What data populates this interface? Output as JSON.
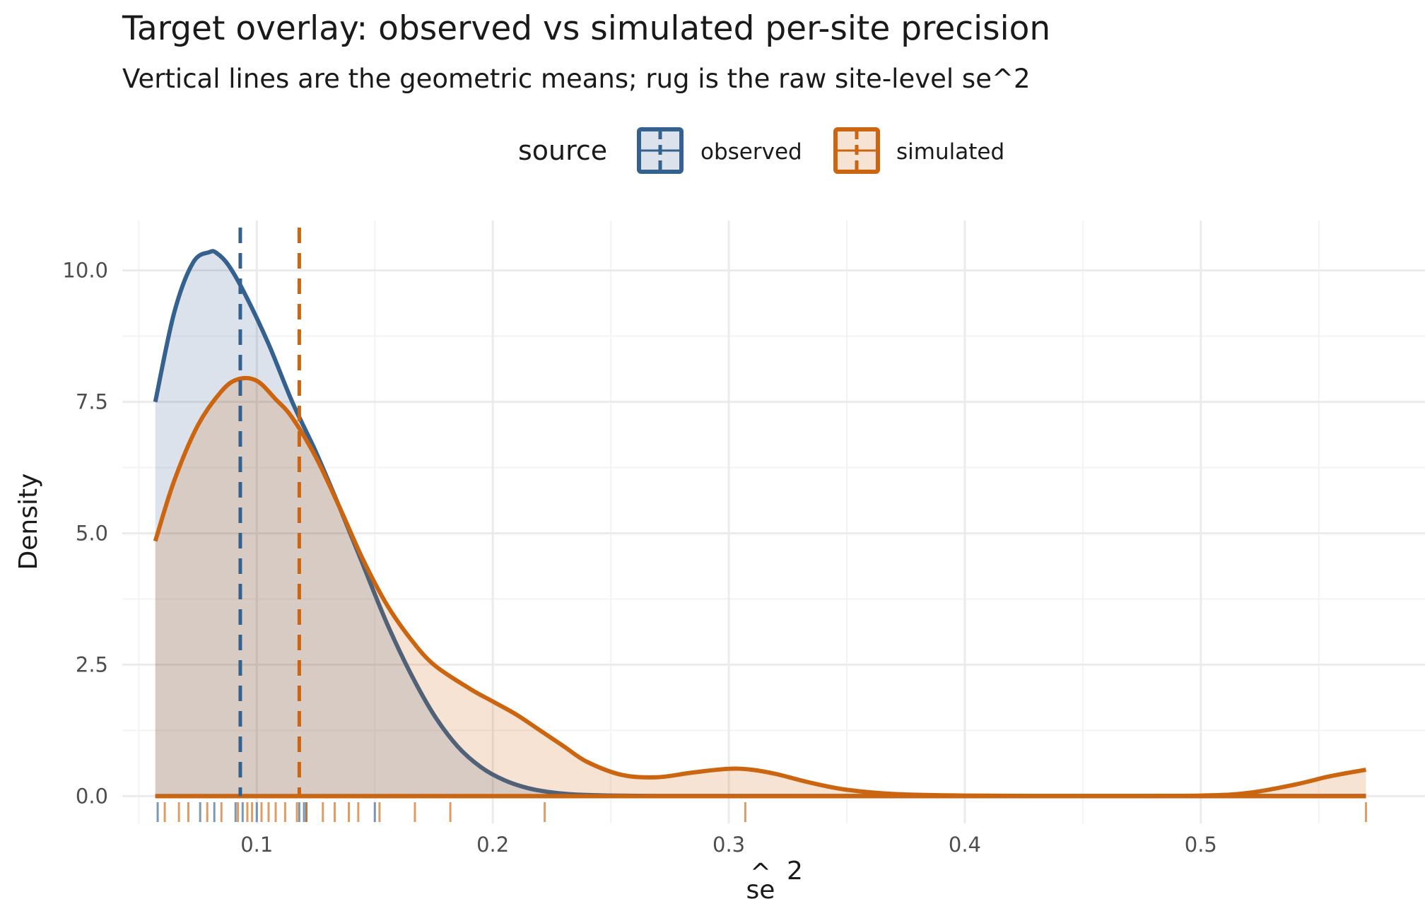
{
  "colors": {
    "observed": "#35618f",
    "simulated": "#cc650f",
    "grid_major": "#ebebeb",
    "grid_minor": "#f3f3f3"
  },
  "chart_data": {
    "type": "area",
    "title": "Target overlay: observed vs simulated per-site precision",
    "subtitle": "Vertical lines are the geometric means; rug is the raw site-level se^2",
    "xlabel_base": "se",
    "xlabel_hat": "^",
    "xlabel_sup": "2",
    "ylabel": "Density",
    "xlim": [
      0.043,
      0.595
    ],
    "ylim": [
      -0.52,
      10.95
    ],
    "x_ticks": [
      0.1,
      0.2,
      0.3,
      0.4,
      0.5
    ],
    "x_tick_labels": [
      "0.1",
      "0.2",
      "0.3",
      "0.4",
      "0.5"
    ],
    "y_ticks": [
      0,
      2.5,
      5,
      7.5,
      10
    ],
    "y_tick_labels": [
      "0.0",
      "2.5",
      "5.0",
      "7.5",
      "10.0"
    ],
    "grid": true,
    "legend": {
      "title": "source",
      "placement": "top",
      "entries": [
        "observed",
        "simulated"
      ]
    },
    "series": [
      {
        "name": "observed",
        "density": {
          "x": [
            0.057,
            0.065,
            0.073,
            0.08,
            0.083,
            0.088,
            0.095,
            0.105,
            0.115,
            0.125,
            0.135,
            0.145,
            0.155,
            0.165,
            0.175,
            0.185,
            0.195,
            0.205,
            0.215,
            0.225,
            0.235,
            0.25,
            0.27,
            0.3,
            0.35,
            0.4,
            0.5,
            0.57
          ],
          "y": [
            7.5,
            9.2,
            10.15,
            10.35,
            10.33,
            10.1,
            9.55,
            8.6,
            7.5,
            6.55,
            5.5,
            4.4,
            3.3,
            2.35,
            1.55,
            0.95,
            0.55,
            0.3,
            0.15,
            0.07,
            0.03,
            0.01,
            0.0,
            0.0,
            0.0,
            0.0,
            0.0,
            0.0
          ]
        },
        "geometric_mean": 0.093,
        "rug": [
          0.058,
          0.076,
          0.082,
          0.091,
          0.094,
          0.1,
          0.118,
          0.12,
          0.121,
          0.15
        ]
      },
      {
        "name": "simulated",
        "density": {
          "x": [
            0.057,
            0.065,
            0.075,
            0.085,
            0.092,
            0.1,
            0.108,
            0.115,
            0.125,
            0.135,
            0.145,
            0.155,
            0.165,
            0.175,
            0.19,
            0.2,
            0.21,
            0.22,
            0.23,
            0.24,
            0.255,
            0.27,
            0.285,
            0.3,
            0.31,
            0.32,
            0.335,
            0.35,
            0.37,
            0.4,
            0.45,
            0.5,
            0.52,
            0.54,
            0.555,
            0.57
          ],
          "y": [
            4.85,
            6.0,
            7.05,
            7.7,
            7.93,
            7.9,
            7.55,
            7.2,
            6.45,
            5.5,
            4.5,
            3.65,
            3.0,
            2.5,
            2.05,
            1.8,
            1.55,
            1.25,
            0.95,
            0.65,
            0.4,
            0.36,
            0.45,
            0.52,
            0.5,
            0.42,
            0.25,
            0.12,
            0.04,
            0.01,
            0.0,
            0.01,
            0.06,
            0.22,
            0.38,
            0.5
          ]
        },
        "geometric_mean": 0.118,
        "rug": [
          0.061,
          0.067,
          0.071,
          0.079,
          0.085,
          0.092,
          0.096,
          0.098,
          0.102,
          0.105,
          0.108,
          0.112,
          0.117,
          0.121,
          0.128,
          0.133,
          0.139,
          0.143,
          0.152,
          0.167,
          0.182,
          0.222,
          0.307,
          0.57
        ]
      }
    ]
  }
}
